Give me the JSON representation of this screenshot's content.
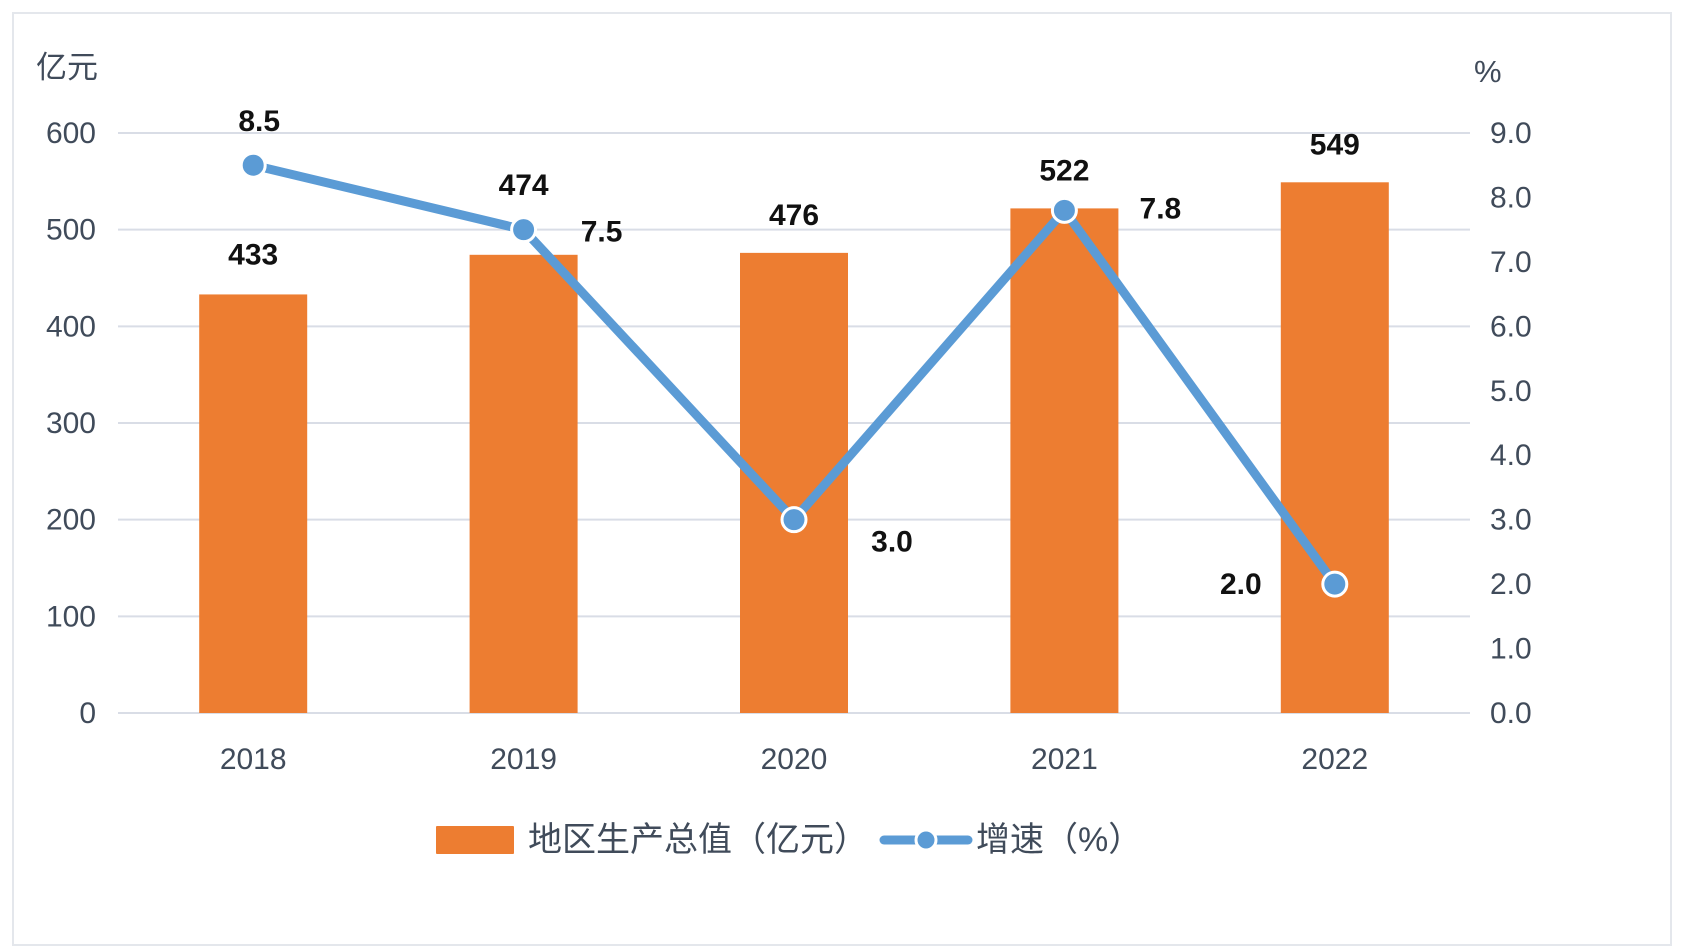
{
  "chart_data": {
    "type": "bar+line",
    "categories": [
      "2018",
      "2019",
      "2020",
      "2021",
      "2022"
    ],
    "series": [
      {
        "name": "地区生产总值（亿元）",
        "type": "bar",
        "axis": "left",
        "values": [
          433,
          474,
          476,
          522,
          549
        ],
        "labels": [
          "433",
          "474",
          "476",
          "522",
          "549"
        ],
        "color": "#ed7d31"
      },
      {
        "name": "增速（%）",
        "type": "line",
        "axis": "right",
        "values": [
          8.5,
          7.5,
          3.0,
          7.8,
          2.0
        ],
        "labels": [
          "8.5",
          "7.5",
          "3.0",
          "7.8",
          "2.0"
        ],
        "color": "#5b9bd5"
      }
    ],
    "left_axis": {
      "unit": "亿元",
      "range": [
        0,
        600
      ],
      "ticks": [
        "0",
        "100",
        "200",
        "300",
        "400",
        "500",
        "600"
      ]
    },
    "right_axis": {
      "unit": "%",
      "range": [
        0,
        9
      ],
      "ticks": [
        "0.0",
        "1.0",
        "2.0",
        "3.0",
        "4.0",
        "5.0",
        "6.0",
        "7.0",
        "8.0",
        "9.0"
      ]
    },
    "grid": true,
    "legend": "bottom",
    "gridline_color": "#d9dde6",
    "point_fill": "#5b9bd5",
    "point_stroke": "#ffffff"
  }
}
